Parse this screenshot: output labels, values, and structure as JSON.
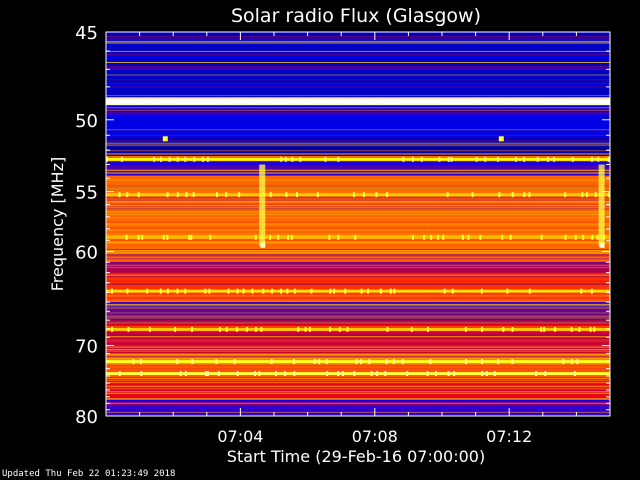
{
  "footer": {
    "updated": "Updated Thu Feb 22 01:23:49 2018"
  },
  "chart_data": {
    "type": "heatmap",
    "title": "Solar radio Flux (Glasgow)",
    "xlabel": "Start Time (29-Feb-16 07:00:00)",
    "ylabel": "Frequency [MHz]",
    "xunit": "minutes after 07:00:00",
    "xlim": [
      0,
      15
    ],
    "ylim": [
      45,
      80
    ],
    "y_scale": "reciprocal",
    "y_inverted": true,
    "xticks": [
      {
        "value": 4,
        "label": "07:04"
      },
      {
        "value": 8,
        "label": "07:08"
      },
      {
        "value": 12,
        "label": "07:12"
      }
    ],
    "yticks": [
      {
        "value": 45,
        "label": "45"
      },
      {
        "value": 50,
        "label": "50"
      },
      {
        "value": 55,
        "label": "55"
      },
      {
        "value": 60,
        "label": "60"
      },
      {
        "value": 70,
        "label": "70"
      },
      {
        "value": 80,
        "label": "80"
      }
    ],
    "colormap": [
      "#00007f",
      "#0000ff",
      "#ff0000",
      "#ffff00",
      "#ffffff"
    ],
    "frequency_bands": [
      {
        "from": 45.0,
        "to": 48.6,
        "level": 0.14
      },
      {
        "from": 48.6,
        "to": 49.1,
        "level": 0.95
      },
      {
        "from": 49.1,
        "to": 51.5,
        "level": 0.2
      },
      {
        "from": 51.5,
        "to": 52.4,
        "level": 0.08
      },
      {
        "from": 52.4,
        "to": 52.8,
        "level": 0.55
      },
      {
        "from": 52.8,
        "to": 53.8,
        "level": 0.3
      },
      {
        "from": 53.8,
        "to": 61.0,
        "level": 0.6
      },
      {
        "from": 61.0,
        "to": 62.0,
        "level": 0.4
      },
      {
        "from": 62.0,
        "to": 65.0,
        "level": 0.55
      },
      {
        "from": 65.0,
        "to": 67.0,
        "level": 0.35
      },
      {
        "from": 67.0,
        "to": 68.5,
        "level": 0.5
      },
      {
        "from": 68.5,
        "to": 71.0,
        "level": 0.45
      },
      {
        "from": 71.0,
        "to": 72.5,
        "level": 0.62
      },
      {
        "from": 72.5,
        "to": 74.5,
        "level": 0.58
      },
      {
        "from": 74.5,
        "to": 77.5,
        "level": 0.48
      },
      {
        "from": 77.5,
        "to": 80.0,
        "level": 0.3
      }
    ],
    "bright_lines": [
      {
        "freq": 48.85,
        "level": 1.0
      },
      {
        "freq": 51.2,
        "level": 0.1
      },
      {
        "freq": 52.6,
        "level": 0.75
      },
      {
        "freq": 55.2,
        "level": 0.7
      },
      {
        "freq": 58.7,
        "level": 0.68
      },
      {
        "freq": 63.8,
        "level": 0.72
      },
      {
        "freq": 68.0,
        "level": 0.7
      },
      {
        "freq": 72.0,
        "level": 0.78
      },
      {
        "freq": 73.6,
        "level": 0.8
      }
    ],
    "bursts": [
      {
        "time": 4.65,
        "freq_from": 53.0,
        "freq_to": 59.5,
        "level": 0.82
      },
      {
        "time": 14.75,
        "freq_from": 53.0,
        "freq_to": 59.5,
        "level": 0.82
      }
    ],
    "spots": [
      {
        "time": 1.75,
        "freq": 51.2,
        "level": 0.8
      },
      {
        "time": 4.65,
        "freq": 59.4,
        "level": 0.95
      },
      {
        "time": 11.75,
        "freq": 51.2,
        "level": 0.8
      },
      {
        "time": 14.75,
        "freq": 59.4,
        "level": 0.95
      }
    ]
  }
}
